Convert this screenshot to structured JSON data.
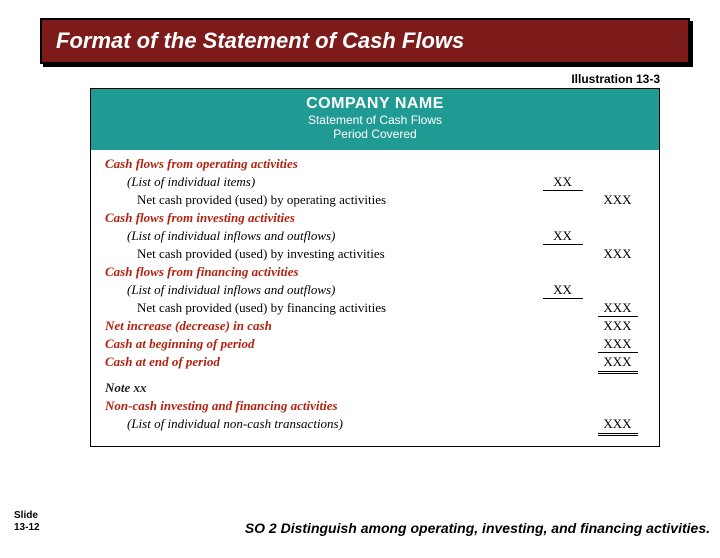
{
  "title": "Format of the Statement of Cash Flows",
  "illustration": "Illustration 13-3",
  "header": {
    "company": "COMPANY NAME",
    "line1": "Statement of Cash Flows",
    "line2": "Period Covered"
  },
  "sections": {
    "op_head": "Cash flows from operating activities",
    "op_list": "(List of individual items)",
    "op_net": "Net cash provided (used) by operating activities",
    "inv_head": "Cash flows from investing activities",
    "inv_list": "(List of individual inflows and outflows)",
    "inv_net": "Net cash provided (used) by investing activities",
    "fin_head": "Cash flows from financing activities",
    "fin_list": "(List of individual inflows and outflows)",
    "fin_net": "Net cash provided (used) by financing activities",
    "net_inc": "Net increase (decrease) in cash",
    "cash_beg": "Cash at beginning of period",
    "cash_end": "Cash at end of period",
    "note": "Note xx",
    "nc_head": "Non-cash investing and financing activities",
    "nc_list": "(List of individual non-cash transactions)"
  },
  "ph": {
    "xx": "XX",
    "xxx": "XXX"
  },
  "slide": {
    "l1": "Slide",
    "l2": "13-12"
  },
  "so": "SO 2  Distinguish among operating, investing, and financing activities."
}
